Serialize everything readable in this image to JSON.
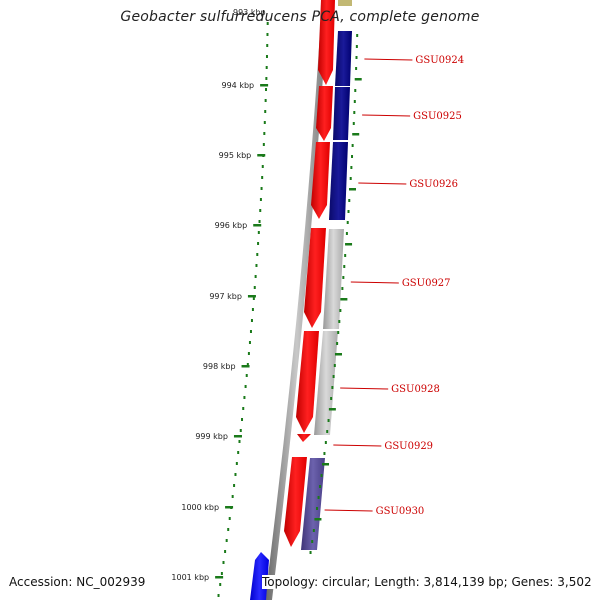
{
  "title": "Geobacter sulfurreducens PCA, complete genome",
  "accession_label": "Accession: NC_002939",
  "topology_label": "Topology: circular; Length: 3,814,139 bp; Genes: 3,502",
  "scale_labels": [
    "994 kbp",
    "995 kbp",
    "996 kbp",
    "997 kbp",
    "998 kbp",
    "999 kbp",
    "1000 kbp",
    "1001 kbp"
  ],
  "top_partial_label": "993 kbp",
  "genes": [
    {
      "name": "GSU0924",
      "strand": "reverse",
      "color": "#000080"
    },
    {
      "name": "GSU0925",
      "strand": "reverse",
      "color": "#000080"
    },
    {
      "name": "GSU0926",
      "strand": "reverse",
      "color": "#000080"
    },
    {
      "name": "GSU0927",
      "strand": "reverse",
      "color": "#b3b3b3"
    },
    {
      "name": "GSU0928",
      "strand": "reverse",
      "color": "#b3b3b3"
    },
    {
      "name": "GSU0929",
      "strand": "reverse",
      "color": "#b3b3b3"
    },
    {
      "name": "GSU0930",
      "strand": "reverse",
      "color": "#5b4f9a"
    }
  ],
  "colors": {
    "forward_strand": "#ff0000",
    "label_text": "#cc0000",
    "scale_dots": "#1a7a1a",
    "backbone": "#8a8a8a",
    "forward_gene_blue": "#0000ff"
  }
}
